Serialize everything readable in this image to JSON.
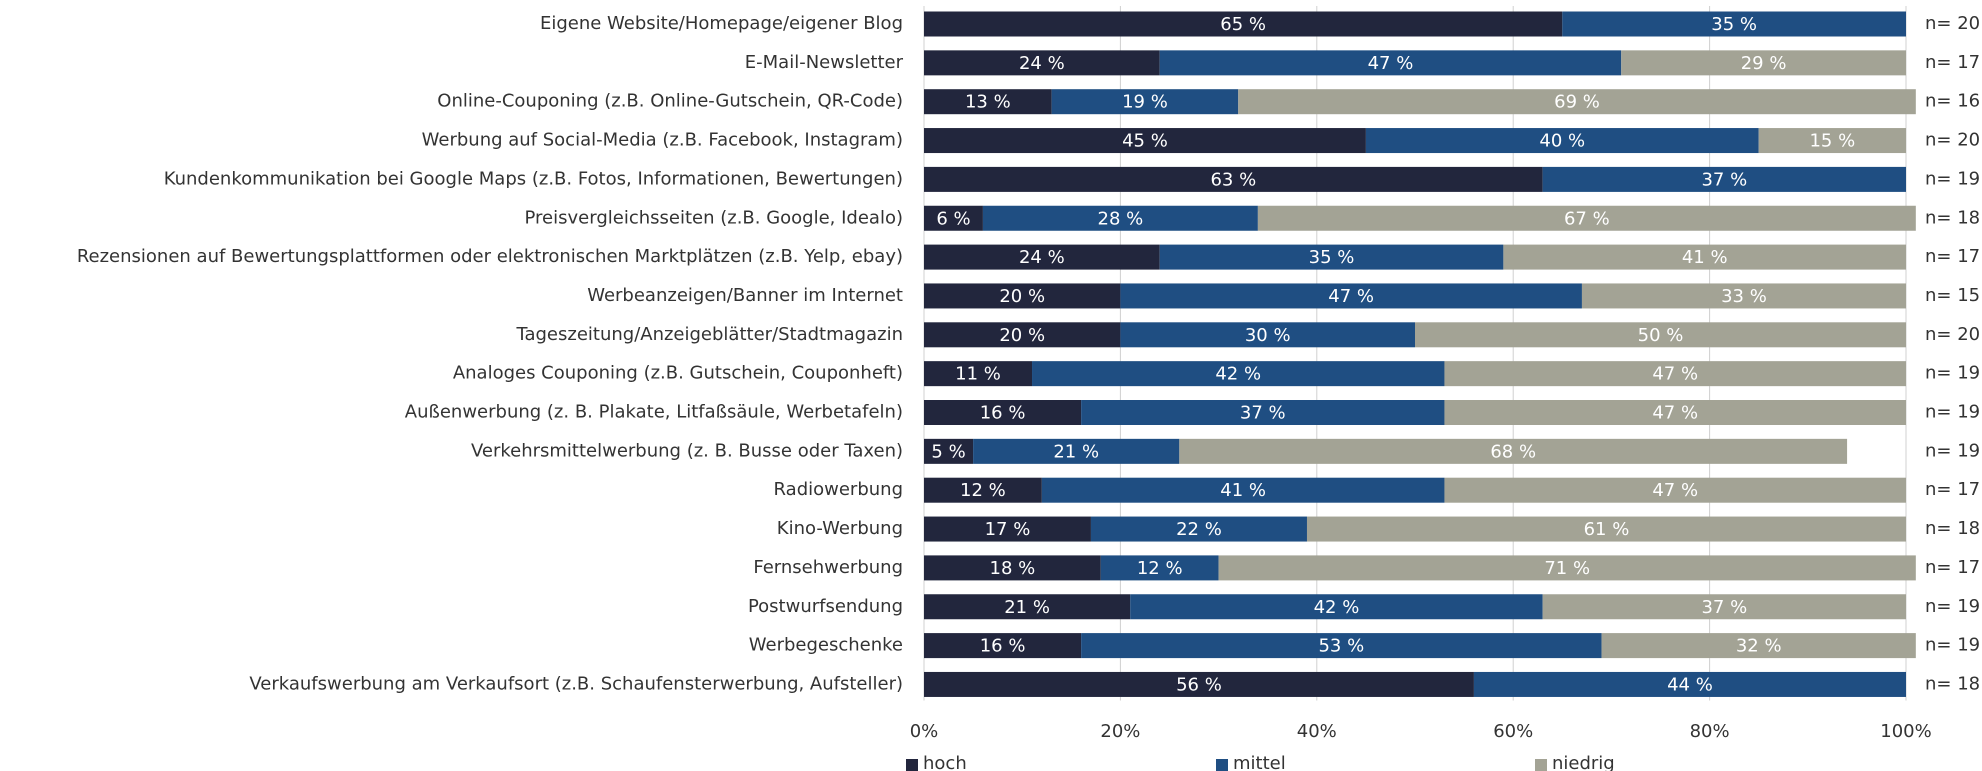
{
  "chart_data": {
    "type": "stacked_barh",
    "categories": [
      "Eigene Website/Homepage/eigener Blog",
      "E-Mail-Newsletter",
      "Online-Couponing (z.B. Online-Gutschein, QR-Code)",
      "Werbung auf Social-Media (z.B. Facebook, Instagram)",
      "Kundenkommunikation bei Google Maps (z.B. Fotos, Informationen, Bewertungen)",
      "Preisvergleichsseiten (z.B. Google, Idealo)",
      "Rezensionen auf Bewertungsplattformen oder elektronischen Marktplätzen (z.B. Yelp, ebay)",
      "Werbeanzeigen/Banner im Internet",
      "Tageszeitung/Anzeigeblätter/Stadtmagazin",
      "Analoges Couponing (z.B. Gutschein, Couponheft)",
      "Außenwerbung (z. B. Plakate, Litfaßsäule, Werbetafeln)",
      "Verkehrsmittelwerbung (z. B. Busse oder Taxen)",
      "Radiowerbung",
      "Kino-Werbung",
      "Fernsehwerbung",
      "Postwurfsendung",
      "Werbegeschenke",
      "Verkaufswerbung am Verkaufsort (z.B. Schaufensterwerbung, Aufsteller)"
    ],
    "series": [
      {
        "name": "hoch",
        "color": "#22263d",
        "values": [
          65,
          24,
          13,
          45,
          63,
          6,
          24,
          20,
          20,
          11,
          16,
          5,
          12,
          17,
          18,
          21,
          16,
          56
        ],
        "value_labels": [
          "65 %",
          "24 %",
          "13 %",
          "45 %",
          "63 %",
          "6 %",
          "24 %",
          "20 %",
          "20 %",
          "11 %",
          "16 %",
          "5 %",
          "12 %",
          "17 %",
          "18 %",
          "21 %",
          "16 %",
          "56 %"
        ]
      },
      {
        "name": "mittel",
        "color": "#1f4e82",
        "values": [
          35,
          47,
          19,
          40,
          37,
          28,
          35,
          47,
          30,
          42,
          37,
          21,
          41,
          22,
          12,
          42,
          53,
          44
        ],
        "value_labels": [
          "35 %",
          "47 %",
          "19 %",
          "40 %",
          "37 %",
          "28 %",
          "35 %",
          "47 %",
          "30 %",
          "42 %",
          "37 %",
          "21 %",
          "41 %",
          "22 %",
          "12 %",
          "42 %",
          "53 %",
          "44 %"
        ]
      },
      {
        "name": "niedrig",
        "color": "#a3a395",
        "values": [
          null,
          29,
          69,
          15,
          null,
          67,
          41,
          33,
          50,
          47,
          47,
          68,
          47,
          61,
          71,
          37,
          32,
          null
        ],
        "value_labels": [
          null,
          "29 %",
          "69 %",
          "15 %",
          null,
          "67 %",
          "41 %",
          "33 %",
          "50 %",
          "47 %",
          "47 %",
          "68 %",
          "47 %",
          "61 %",
          "71 %",
          "37 %",
          "32 %",
          null
        ]
      }
    ],
    "n_labels": [
      "n= 20",
      "n= 17",
      "n= 16",
      "n= 20",
      "n= 19",
      "n= 18",
      "n= 17",
      "n= 15",
      "n= 20",
      "n= 19",
      "n= 19",
      "n= 19",
      "n= 17",
      "n= 18",
      "n= 17",
      "n= 19",
      "n= 19",
      "n= 18"
    ],
    "xlim": [
      0,
      100
    ],
    "xticks": [
      {
        "value": 0,
        "label": "0%"
      },
      {
        "value": 20,
        "label": "20%"
      },
      {
        "value": 40,
        "label": "40%"
      },
      {
        "value": 60,
        "label": "60%"
      },
      {
        "value": 80,
        "label": "80%"
      },
      {
        "value": 100,
        "label": "100%"
      }
    ],
    "grid": true
  }
}
